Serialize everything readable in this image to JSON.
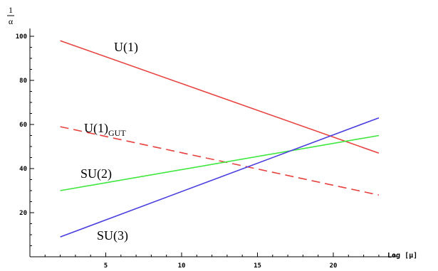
{
  "chart_data": {
    "type": "line",
    "xlabel": "Log [μ]",
    "ylabel_numerator": "1",
    "ylabel_denominator": "α",
    "xlim": [
      0,
      24
    ],
    "ylim": [
      0,
      105
    ],
    "x_ticks": [
      5,
      10,
      15,
      20
    ],
    "y_ticks": [
      20,
      40,
      60,
      80,
      100
    ],
    "grid": false,
    "series": [
      {
        "name": "U(1)",
        "color": "#e8423f",
        "dash": false,
        "x": [
          2,
          23
        ],
        "y": [
          98,
          47
        ]
      },
      {
        "name": "U(1)",
        "name_sub": "GUT",
        "color": "#e8423f",
        "dash": true,
        "x": [
          2,
          23
        ],
        "y": [
          59,
          28
        ]
      },
      {
        "name": "SU(2)",
        "color": "#3ee83e",
        "dash": false,
        "x": [
          2,
          23
        ],
        "y": [
          30,
          55
        ]
      },
      {
        "name": "SU(3)",
        "color": "#4a3ee0",
        "dash": false,
        "x": [
          2,
          23
        ],
        "y": [
          9,
          63
        ]
      }
    ]
  }
}
